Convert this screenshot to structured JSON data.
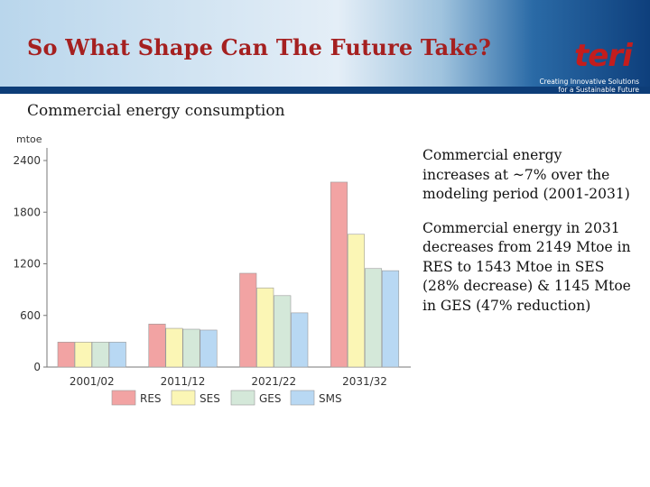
{
  "header": {
    "title": "So What Shape Can The Future Take?",
    "logo_word": "teri",
    "tagline_1": "Creating Innovative Solutions",
    "tagline_2": "for a Sustainable Future"
  },
  "subtitle": "Commercial energy consumption",
  "chart_data": {
    "type": "bar",
    "title": "",
    "xlabel": "",
    "ylabel": "mtoe",
    "ylim": [
      0,
      2400
    ],
    "yticks": [
      0,
      600,
      1200,
      1800,
      2400
    ],
    "categories": [
      "2001/02",
      "2011/12",
      "2021/22",
      "2031/32"
    ],
    "series": [
      {
        "name": "RES",
        "color": "#f2a3a3",
        "values": [
          290,
          500,
          1090,
          2149
        ]
      },
      {
        "name": "SES",
        "color": "#fbf6b5",
        "values": [
          290,
          450,
          920,
          1543
        ]
      },
      {
        "name": "GES",
        "color": "#d4e8d9",
        "values": [
          290,
          440,
          830,
          1145
        ]
      },
      {
        "name": "SMS",
        "color": "#b8d8f3",
        "values": [
          290,
          430,
          630,
          1120
        ]
      }
    ],
    "legend_position": "bottom-center",
    "grid": false
  },
  "notes": [
    "Commercial energy increases at ~7% over the modeling period (2001-2031)",
    "Commercial energy in 2031 decreases from 2149 Mtoe in RES to 1543 Mtoe in SES (28% decrease) & 1145 Mtoe in GES (47% reduction)"
  ],
  "colors": {
    "title": "#a52020",
    "header_band": "#0d3d78",
    "logo": "#c41d1d"
  }
}
